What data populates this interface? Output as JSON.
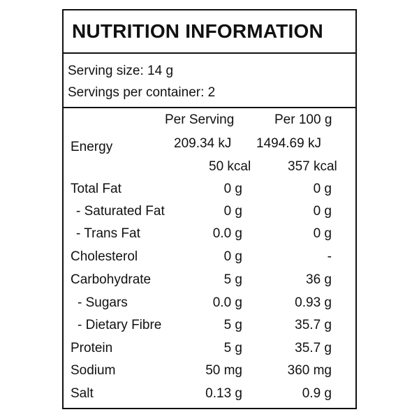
{
  "title": "NUTRITION INFORMATION",
  "serving_size": "Serving size: 14 g",
  "servings_per_container": "Servings per container: 2",
  "columns": {
    "per_serving": "Per  Serving",
    "per_100g": "Per 100 g"
  },
  "energy": {
    "label": "Energy",
    "kj_serving": "209.34 kJ",
    "kj_100g": "1494.69 kJ",
    "kcal_serving": "50 kcal",
    "kcal_100g": "357 kcal"
  },
  "rows": [
    {
      "label": "Total Fat",
      "per_serving": "0 g",
      "per_100g": "0 g"
    },
    {
      "label": "- Saturated Fat",
      "per_serving": "0 g",
      "per_100g": "0 g"
    },
    {
      "label": "- Trans Fat",
      "per_serving": "0.0 g",
      "per_100g": "0 g"
    },
    {
      "label": "Cholesterol",
      "per_serving": "0 g",
      "per_100g": "-"
    },
    {
      "label": "Carbohydrate",
      "per_serving": "5 g",
      "per_100g": "36 g"
    },
    {
      "label": "- Sugars",
      "per_serving": "0.0 g",
      "per_100g": "0.93 g"
    },
    {
      "label": "- Dietary Fibre",
      "per_serving": "5 g",
      "per_100g": "35.7 g"
    },
    {
      "label": "Protein",
      "per_serving": "5 g",
      "per_100g": "35.7 g"
    },
    {
      "label": "Sodium",
      "per_serving": "50 mg",
      "per_100g": "360 mg"
    },
    {
      "label": "Salt",
      "per_serving": "0.13 g",
      "per_100g": "0.9 g"
    }
  ]
}
